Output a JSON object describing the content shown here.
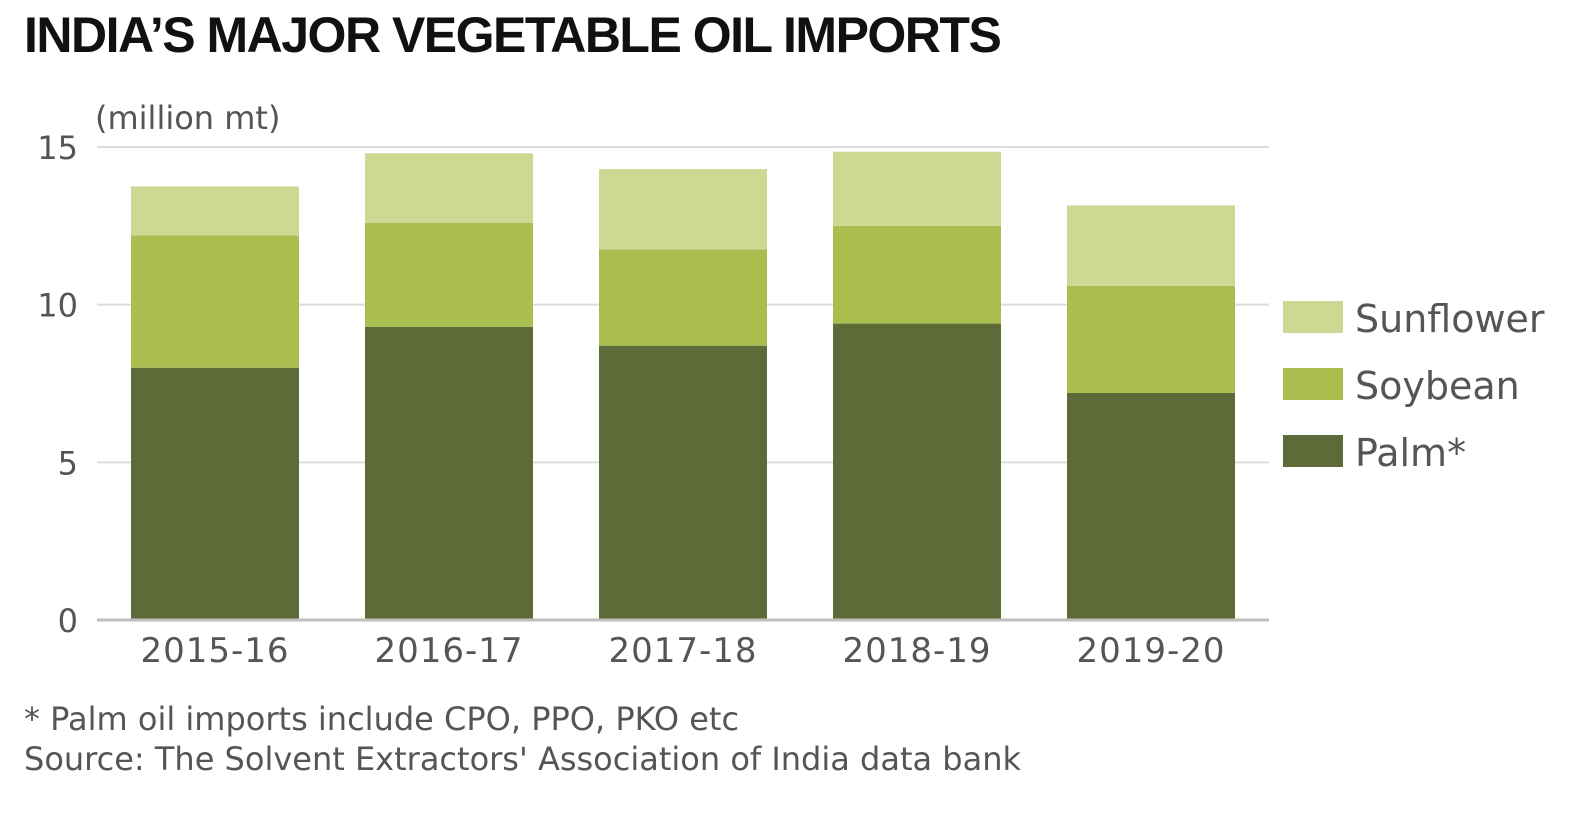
{
  "title": "INDIA’S MAJOR VEGETABLE OIL IMPORTS",
  "footnote": "* Palm oil imports include CPO, PPO, PKO etc",
  "source": "Source: The Solvent Extractors' Association of India data bank",
  "colors": {
    "palm": "#5c6b38",
    "soybean": "#a9be4f",
    "sunflower": "#cdd893",
    "grid": "#dcdcdc",
    "axis": "#bfbfbf",
    "text": "#555555"
  },
  "chart_data": {
    "type": "bar",
    "stacked": true,
    "title": "INDIA’S MAJOR VEGETABLE OIL IMPORTS",
    "ylabel": "(million mt)",
    "xlabel": "",
    "ylim": [
      0,
      15
    ],
    "yticks": [
      0,
      5,
      10,
      15
    ],
    "grid": true,
    "legend_position": "right",
    "categories": [
      "2015-16",
      "2016-17",
      "2017-18",
      "2018-19",
      "2019-20"
    ],
    "series": [
      {
        "name": "Palm*",
        "key": "palm",
        "values": [
          8.0,
          9.3,
          8.7,
          9.4,
          7.2
        ]
      },
      {
        "name": "Soybean",
        "key": "soybean",
        "values": [
          4.2,
          3.3,
          3.05,
          3.1,
          3.4
        ]
      },
      {
        "name": "Sunflower",
        "key": "sunflower",
        "values": [
          1.55,
          2.2,
          2.55,
          2.35,
          2.55
        ]
      }
    ],
    "legend_order": [
      "Sunflower",
      "Soybean",
      "Palm*"
    ]
  }
}
